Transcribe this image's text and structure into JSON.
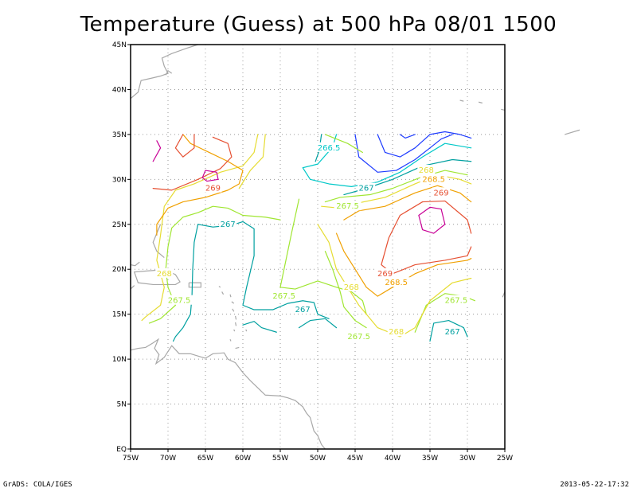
{
  "title": "Temperature (Guess) at 500 hPa 08/01 1500",
  "footer": {
    "left": "GrADS: COLA/IGES",
    "right": "2013-05-22-17:32"
  },
  "chart_data": {
    "type": "contour",
    "title": "Temperature (Guess) at 500 hPa 08/01 1500",
    "x_ticks": [
      "75W",
      "70W",
      "65W",
      "60W",
      "55W",
      "50W",
      "45W",
      "40W",
      "35W",
      "30W",
      "25W"
    ],
    "y_ticks": [
      "EQ",
      "5N",
      "10N",
      "15N",
      "20N",
      "25N",
      "30N",
      "35N",
      "40N",
      "45N"
    ],
    "xlim": [
      -75,
      -25
    ],
    "ylim": [
      0,
      45
    ],
    "grid": true,
    "contour_levels": [
      266,
      266.5,
      267,
      267.5,
      268,
      268.5,
      269,
      269.5
    ],
    "contour_colors": {
      "266": "#1e3cff",
      "266.5": "#00c8c8",
      "267": "#00a0a0",
      "267.5": "#a0e632",
      "268": "#e6dc32",
      "268.5": "#f0a000",
      "269": "#e65032",
      "269.5": "#c80096"
    },
    "labels": [
      {
        "text": "266.5",
        "lon": -48.5,
        "lat": 33.5,
        "level": "266.5"
      },
      {
        "text": "267",
        "lon": -43.5,
        "lat": 29,
        "level": "267"
      },
      {
        "text": "267",
        "lon": -62,
        "lat": 25,
        "level": "267"
      },
      {
        "text": "267",
        "lon": -52,
        "lat": 15.5,
        "level": "267"
      },
      {
        "text": "267",
        "lon": -32,
        "lat": 13,
        "level": "267"
      },
      {
        "text": "267.5",
        "lon": -46,
        "lat": 27,
        "level": "267.5"
      },
      {
        "text": "267.5",
        "lon": -54.5,
        "lat": 17,
        "level": "267.5"
      },
      {
        "text": "267.5",
        "lon": -68.5,
        "lat": 16.5,
        "level": "267.5"
      },
      {
        "text": "267.5",
        "lon": -31.5,
        "lat": 16.5,
        "level": "267.5"
      },
      {
        "text": "267.5",
        "lon": -44.5,
        "lat": 12.5,
        "level": "267.5"
      },
      {
        "text": "268",
        "lon": -35.5,
        "lat": 31,
        "level": "268"
      },
      {
        "text": "268",
        "lon": -70.5,
        "lat": 19.5,
        "level": "268"
      },
      {
        "text": "268",
        "lon": -45.5,
        "lat": 18,
        "level": "268"
      },
      {
        "text": "268",
        "lon": -39.5,
        "lat": 13,
        "level": "268"
      },
      {
        "text": "268.5",
        "lon": -34.5,
        "lat": 30,
        "level": "268.5"
      },
      {
        "text": "268.5",
        "lon": -39.5,
        "lat": 18.5,
        "level": "268.5"
      },
      {
        "text": "269",
        "lon": -64,
        "lat": 29,
        "level": "269"
      },
      {
        "text": "269",
        "lon": -33.5,
        "lat": 28.5,
        "level": "269"
      },
      {
        "text": "269",
        "lon": -41,
        "lat": 19.5,
        "level": "269"
      }
    ]
  }
}
